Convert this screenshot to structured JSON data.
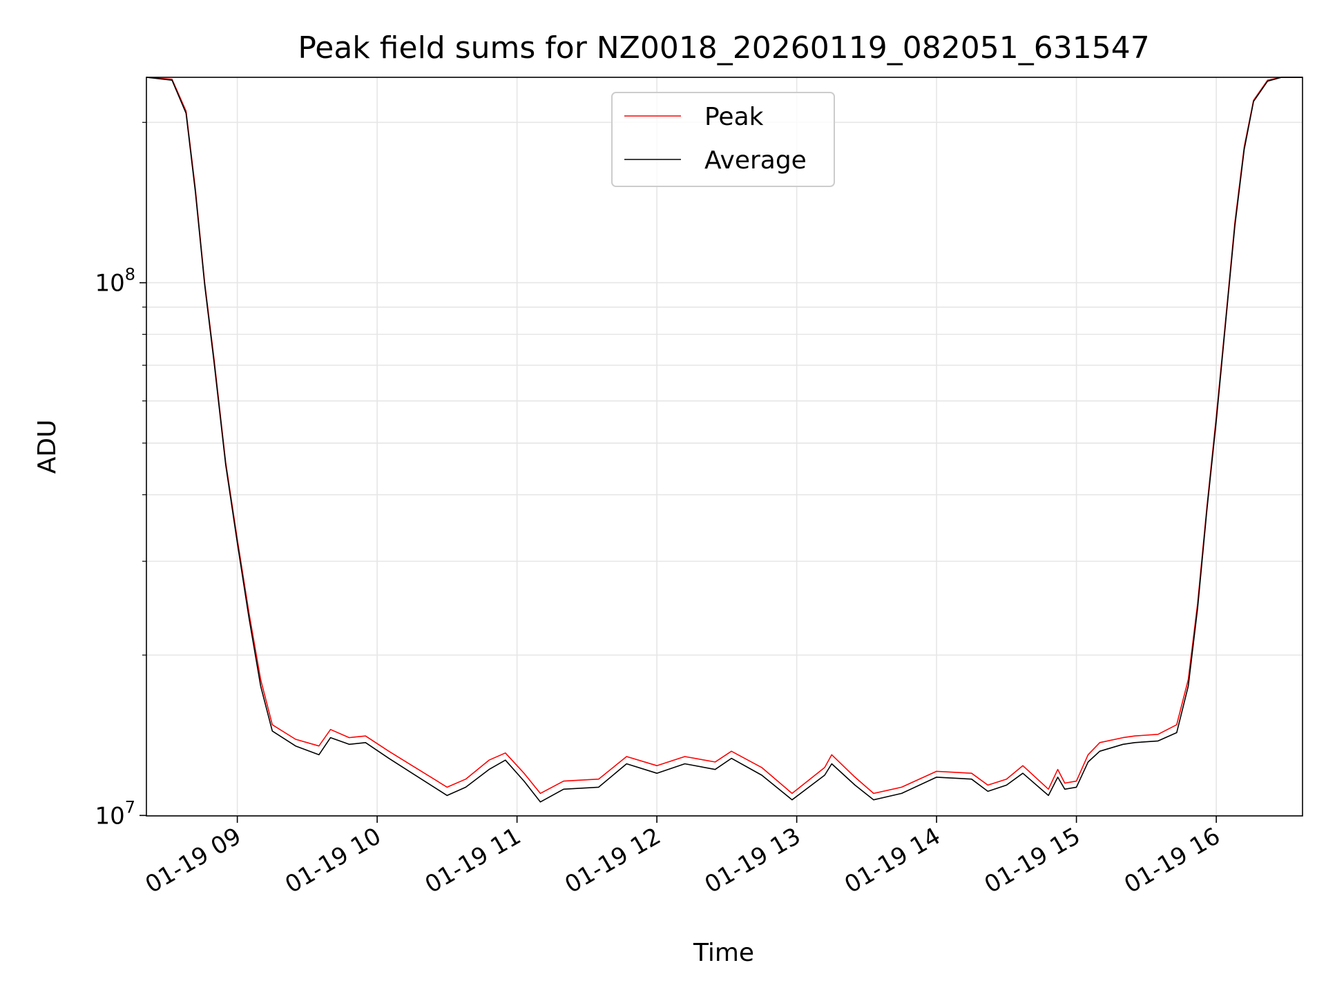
{
  "chart_data": {
    "type": "line",
    "title": "Peak field sums for NZ0018_20260119_082051_631547",
    "xlabel": "Time",
    "ylabel": "ADU",
    "yscale": "log",
    "xlim": [
      "2026-01-19T08:21:00",
      "2026-01-19T16:37:00"
    ],
    "ylim": [
      9980000,
      243000000
    ],
    "grid": true,
    "legend_position": "top-center",
    "x_ticks": [
      {
        "value": "2026-01-19T09:00:00",
        "label": "01-19 09"
      },
      {
        "value": "2026-01-19T10:00:00",
        "label": "01-19 10"
      },
      {
        "value": "2026-01-19T11:00:00",
        "label": "01-19 11"
      },
      {
        "value": "2026-01-19T12:00:00",
        "label": "01-19 12"
      },
      {
        "value": "2026-01-19T13:00:00",
        "label": "01-19 13"
      },
      {
        "value": "2026-01-19T14:00:00",
        "label": "01-19 14"
      },
      {
        "value": "2026-01-19T15:00:00",
        "label": "01-19 15"
      },
      {
        "value": "2026-01-19T16:00:00",
        "label": "01-19 16"
      }
    ],
    "y_ticks": [
      {
        "value": 10000000,
        "base": "10",
        "exp": "7"
      },
      {
        "value": 100000000,
        "base": "10",
        "exp": "8"
      }
    ],
    "y_minor_ticks": [
      20000000,
      30000000,
      40000000,
      50000000,
      60000000,
      70000000,
      80000000,
      90000000,
      200000000
    ],
    "series": [
      {
        "name": "Peak",
        "color": "#ff0000",
        "x": [
          "2026-01-19T08:21:00",
          "2026-01-19T08:32:00",
          "2026-01-19T08:38:00",
          "2026-01-19T08:42:00",
          "2026-01-19T08:46:00",
          "2026-01-19T08:50:00",
          "2026-01-19T08:55:00",
          "2026-01-19T09:00:00",
          "2026-01-19T09:05:00",
          "2026-01-19T09:10:00",
          "2026-01-19T09:15:00",
          "2026-01-19T09:25:00",
          "2026-01-19T09:35:00",
          "2026-01-19T09:40:00",
          "2026-01-19T09:48:00",
          "2026-01-19T09:55:00",
          "2026-01-19T10:05:00",
          "2026-01-19T10:15:00",
          "2026-01-19T10:30:00",
          "2026-01-19T10:38:00",
          "2026-01-19T10:48:00",
          "2026-01-19T10:55:00",
          "2026-01-19T11:03:00",
          "2026-01-19T11:10:00",
          "2026-01-19T11:20:00",
          "2026-01-19T11:35:00",
          "2026-01-19T11:47:00",
          "2026-01-19T12:00:00",
          "2026-01-19T12:12:00",
          "2026-01-19T12:25:00",
          "2026-01-19T12:32:00",
          "2026-01-19T12:45:00",
          "2026-01-19T12:58:00",
          "2026-01-19T13:12:00",
          "2026-01-19T13:15:00",
          "2026-01-19T13:25:00",
          "2026-01-19T13:33:00",
          "2026-01-19T13:45:00",
          "2026-01-19T14:00:00",
          "2026-01-19T14:15:00",
          "2026-01-19T14:22:00",
          "2026-01-19T14:30:00",
          "2026-01-19T14:37:00",
          "2026-01-19T14:48:00",
          "2026-01-19T14:52:00",
          "2026-01-19T14:55:00",
          "2026-01-19T15:00:00",
          "2026-01-19T15:05:00",
          "2026-01-19T15:10:00",
          "2026-01-19T15:20:00",
          "2026-01-19T15:25:00",
          "2026-01-19T15:35:00",
          "2026-01-19T15:43:00",
          "2026-01-19T15:48:00",
          "2026-01-19T15:52:00",
          "2026-01-19T15:56:00",
          "2026-01-19T16:00:00",
          "2026-01-19T16:04:00",
          "2026-01-19T16:08:00",
          "2026-01-19T16:12:00",
          "2026-01-19T16:16:00",
          "2026-01-19T16:22:00",
          "2026-01-19T16:28:00",
          "2026-01-19T16:37:00"
        ],
        "y": [
          243000000,
          241000000,
          210000000,
          150000000,
          100000000,
          72000000,
          46000000,
          33000000,
          24000000,
          18000000,
          14800000,
          13900000,
          13500000,
          14500000,
          14000000,
          14100000,
          13200000,
          12400000,
          11300000,
          11700000,
          12700000,
          13100000,
          12000000,
          11000000,
          11600000,
          11700000,
          12900000,
          12400000,
          12900000,
          12600000,
          13200000,
          12300000,
          11000000,
          12300000,
          13000000,
          11800000,
          11000000,
          11300000,
          12100000,
          12000000,
          11400000,
          11700000,
          12400000,
          11200000,
          12200000,
          11500000,
          11600000,
          13000000,
          13700000,
          14000000,
          14100000,
          14200000,
          14800000,
          18000000,
          25000000,
          38000000,
          56000000,
          85000000,
          130000000,
          180000000,
          220000000,
          240000000,
          243000000,
          243000000
        ]
      },
      {
        "name": "Average",
        "color": "#000000",
        "x": [
          "2026-01-19T08:21:00",
          "2026-01-19T08:32:00",
          "2026-01-19T08:38:00",
          "2026-01-19T08:42:00",
          "2026-01-19T08:46:00",
          "2026-01-19T08:50:00",
          "2026-01-19T08:55:00",
          "2026-01-19T09:00:00",
          "2026-01-19T09:05:00",
          "2026-01-19T09:10:00",
          "2026-01-19T09:15:00",
          "2026-01-19T09:25:00",
          "2026-01-19T09:35:00",
          "2026-01-19T09:40:00",
          "2026-01-19T09:48:00",
          "2026-01-19T09:55:00",
          "2026-01-19T10:05:00",
          "2026-01-19T10:15:00",
          "2026-01-19T10:30:00",
          "2026-01-19T10:38:00",
          "2026-01-19T10:48:00",
          "2026-01-19T10:55:00",
          "2026-01-19T11:03:00",
          "2026-01-19T11:10:00",
          "2026-01-19T11:20:00",
          "2026-01-19T11:35:00",
          "2026-01-19T11:47:00",
          "2026-01-19T12:00:00",
          "2026-01-19T12:12:00",
          "2026-01-19T12:25:00",
          "2026-01-19T12:32:00",
          "2026-01-19T12:45:00",
          "2026-01-19T12:58:00",
          "2026-01-19T13:12:00",
          "2026-01-19T13:15:00",
          "2026-01-19T13:25:00",
          "2026-01-19T13:33:00",
          "2026-01-19T13:45:00",
          "2026-01-19T14:00:00",
          "2026-01-19T14:15:00",
          "2026-01-19T14:22:00",
          "2026-01-19T14:30:00",
          "2026-01-19T14:37:00",
          "2026-01-19T14:48:00",
          "2026-01-19T14:52:00",
          "2026-01-19T14:55:00",
          "2026-01-19T15:00:00",
          "2026-01-19T15:05:00",
          "2026-01-19T15:10:00",
          "2026-01-19T15:20:00",
          "2026-01-19T15:25:00",
          "2026-01-19T15:35:00",
          "2026-01-19T15:43:00",
          "2026-01-19T15:48:00",
          "2026-01-19T15:52:00",
          "2026-01-19T15:56:00",
          "2026-01-19T16:00:00",
          "2026-01-19T16:04:00",
          "2026-01-19T16:08:00",
          "2026-01-19T16:12:00",
          "2026-01-19T16:16:00",
          "2026-01-19T16:22:00",
          "2026-01-19T16:28:00",
          "2026-01-19T16:37:00"
        ],
        "y": [
          243000000,
          240000000,
          208000000,
          148000000,
          99000000,
          71000000,
          45500000,
          32500000,
          23500000,
          17500000,
          14400000,
          13500000,
          13000000,
          14000000,
          13600000,
          13700000,
          12800000,
          12000000,
          10900000,
          11300000,
          12200000,
          12700000,
          11600000,
          10600000,
          11200000,
          11300000,
          12500000,
          12000000,
          12500000,
          12200000,
          12800000,
          11900000,
          10700000,
          11900000,
          12500000,
          11400000,
          10700000,
          11000000,
          11800000,
          11700000,
          11100000,
          11400000,
          12000000,
          10900000,
          11800000,
          11200000,
          11300000,
          12600000,
          13200000,
          13600000,
          13700000,
          13800000,
          14300000,
          17500000,
          24500000,
          37500000,
          55000000,
          84000000,
          128000000,
          178000000,
          219000000,
          239000000,
          243000000,
          243000000
        ]
      }
    ]
  }
}
